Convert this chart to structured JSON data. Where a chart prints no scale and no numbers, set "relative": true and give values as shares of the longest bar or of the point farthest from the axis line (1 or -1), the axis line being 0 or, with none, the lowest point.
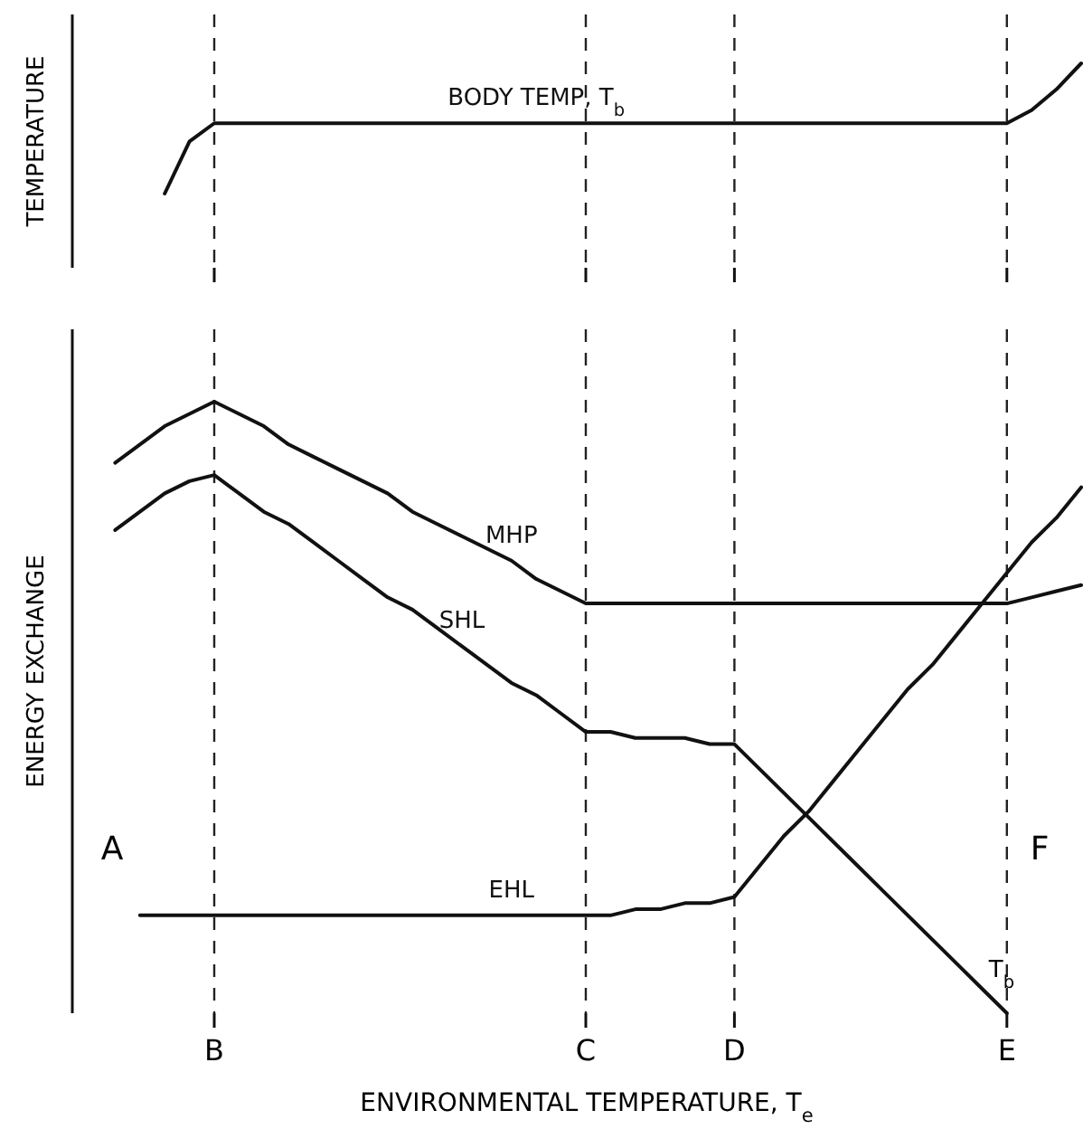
{
  "chart_data": [
    {
      "type": "line",
      "ylabel": "TEMPERATURE",
      "relative": true,
      "tick_labels": false,
      "grid": false,
      "marker": "none",
      "line_style": "solid",
      "categories": [
        null,
        null,
        null,
        null,
        null,
        "B",
        null,
        null,
        null,
        null,
        null,
        null,
        null,
        null,
        null,
        null,
        null,
        null,
        null,
        null,
        "C",
        null,
        null,
        null,
        null,
        null,
        "D",
        null,
        null,
        null,
        null,
        null,
        null,
        null,
        null,
        null,
        null,
        "E",
        null,
        null,
        null
      ],
      "ref_lines": [
        {
          "axis": "x",
          "value": "B",
          "line_style": "dashed"
        },
        {
          "axis": "x",
          "value": "C",
          "line_style": "dashed"
        },
        {
          "axis": "x",
          "value": "D",
          "line_style": "dashed"
        },
        {
          "axis": "x",
          "value": "E",
          "line_style": "dashed"
        }
      ],
      "series": [
        {
          "name": "BODY TEMP, T$_{b}$",
          "color": "#111111",
          "values": [
            null,
            null,
            null,
            0,
            0.4,
            0.54,
            0.54,
            0.54,
            0.54,
            0.54,
            0.54,
            0.54,
            0.54,
            0.54,
            0.54,
            0.54,
            0.54,
            0.54,
            0.54,
            0.54,
            0.54,
            0.54,
            0.54,
            0.54,
            0.54,
            0.54,
            0.54,
            0.54,
            0.54,
            0.54,
            0.54,
            0.54,
            0.54,
            0.54,
            0.54,
            0.54,
            0.54,
            0.54,
            0.64,
            0.8,
            1
          ]
        }
      ]
    },
    {
      "type": "line",
      "ylabel": "ENERGY EXCHANGE",
      "xlabel": "ENVIRONMENTAL TEMPERATURE, T$_{e}$",
      "relative": true,
      "grid": false,
      "marker": "none",
      "line_style": "solid",
      "categories": [
        null,
        null,
        null,
        null,
        null,
        "B",
        null,
        null,
        null,
        null,
        null,
        null,
        null,
        null,
        null,
        null,
        null,
        null,
        null,
        null,
        "C",
        null,
        null,
        null,
        null,
        null,
        "D",
        null,
        null,
        null,
        null,
        null,
        null,
        null,
        null,
        null,
        null,
        "E",
        null,
        null,
        null
      ],
      "ref_lines": [
        {
          "axis": "x",
          "value": "B",
          "line_style": "dashed"
        },
        {
          "axis": "x",
          "value": "C",
          "line_style": "dashed"
        },
        {
          "axis": "x",
          "value": "D",
          "line_style": "dashed"
        },
        {
          "axis": "x",
          "value": "E",
          "line_style": "dashed"
        }
      ],
      "annotations": [
        "A",
        "F",
        {
          "text": "T$_{b}$",
          "x": "E",
          "y": 0
        }
      ],
      "series": [
        {
          "name": "MHP",
          "color": "#111111",
          "values": [
            null,
            0.9,
            0.93,
            0.96,
            0.98,
            1,
            0.98,
            0.96,
            0.93,
            0.91,
            0.89,
            0.87,
            0.85,
            0.82,
            0.8,
            0.78,
            0.76,
            0.74,
            0.71,
            0.69,
            0.67,
            0.67,
            0.67,
            0.67,
            0.67,
            0.67,
            0.67,
            0.67,
            0.67,
            0.67,
            0.67,
            0.67,
            0.67,
            0.67,
            0.67,
            0.67,
            0.67,
            0.67,
            0.68,
            0.69,
            0.7
          ]
        },
        {
          "name": "SHL",
          "color": "#111111",
          "values": [
            null,
            0.79,
            0.82,
            0.85,
            0.87,
            0.88,
            0.85,
            0.82,
            0.8,
            0.77,
            0.74,
            0.71,
            0.68,
            0.66,
            0.63,
            0.6,
            0.57,
            0.54,
            0.52,
            0.49,
            0.46,
            0.46,
            0.45,
            0.45,
            0.45,
            0.44,
            0.44,
            0.4,
            0.36,
            0.32,
            0.28,
            0.24,
            0.2,
            0.16,
            0.12,
            0.08,
            0.04,
            0,
            null,
            null,
            null
          ]
        },
        {
          "name": "EHL",
          "color": "#111111",
          "values": [
            null,
            null,
            0.16,
            0.16,
            0.16,
            0.16,
            0.16,
            0.16,
            0.16,
            0.16,
            0.16,
            0.16,
            0.16,
            0.16,
            0.16,
            0.16,
            0.16,
            0.16,
            0.16,
            0.16,
            0.16,
            0.16,
            0.17,
            0.17,
            0.18,
            0.18,
            0.19,
            0.24,
            0.29,
            0.33,
            0.38,
            0.43,
            0.48,
            0.53,
            0.57,
            0.62,
            0.67,
            0.72,
            0.77,
            0.81,
            0.86
          ]
        }
      ]
    }
  ]
}
